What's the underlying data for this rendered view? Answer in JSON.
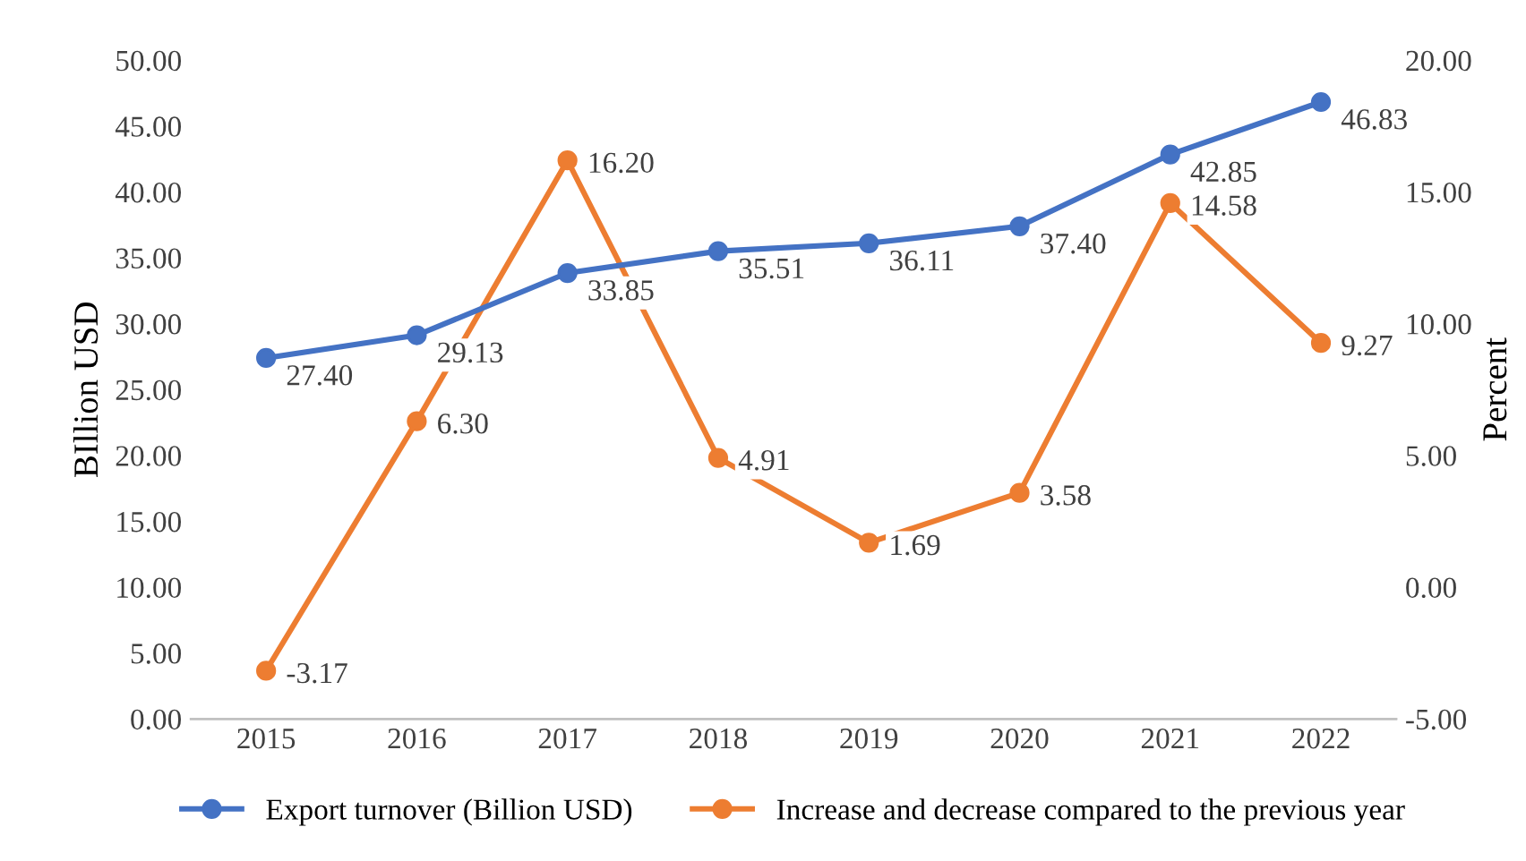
{
  "chart_data": {
    "type": "line",
    "categories": [
      "2015",
      "2016",
      "2017",
      "2018",
      "2019",
      "2020",
      "2021",
      "2022"
    ],
    "series": [
      {
        "name": "Export turnover (Billion USD)",
        "color": "#4472c4",
        "values": [
          27.4,
          29.13,
          33.85,
          35.51,
          36.11,
          37.4,
          42.85,
          46.83
        ],
        "value_labels": [
          "27.40",
          "29.13",
          "33.85",
          "35.51",
          "36.11",
          "37.40",
          "42.85",
          "46.83"
        ]
      },
      {
        "name": "Increase and decrease compared to the previous year",
        "color": "#ed7d31",
        "axis": "y2",
        "values": [
          -3.17,
          6.3,
          16.2,
          4.91,
          1.69,
          3.58,
          14.58,
          9.27
        ],
        "value_labels": [
          "-3.17",
          "6.30",
          "16.20",
          "4.91",
          "1.69",
          "3.58",
          "14.58",
          "9.27"
        ]
      }
    ],
    "ylabel": "BIllion USD",
    "y2label": "Percent",
    "ylim": [
      0,
      50
    ],
    "yticks": [
      {
        "value": 0,
        "label": "0.00"
      },
      {
        "value": 5,
        "label": "5.00"
      },
      {
        "value": 10,
        "label": "10.00"
      },
      {
        "value": 15,
        "label": "15.00"
      },
      {
        "value": 20,
        "label": "20.00"
      },
      {
        "value": 25,
        "label": "25.00"
      },
      {
        "value": 30,
        "label": "30.00"
      },
      {
        "value": 35,
        "label": "35.00"
      },
      {
        "value": 40,
        "label": "40.00"
      },
      {
        "value": 45,
        "label": "45.00"
      },
      {
        "value": 50,
        "label": "50.00"
      }
    ],
    "y2lim": [
      -5,
      20
    ],
    "y2ticks": [
      {
        "value": -5,
        "label": "-5.00"
      },
      {
        "value": 0,
        "label": "0.00"
      },
      {
        "value": 5,
        "label": "5.00"
      },
      {
        "value": 10,
        "label": "10.00"
      },
      {
        "value": 15,
        "label": "15.00"
      },
      {
        "value": 20,
        "label": "20.00"
      }
    ],
    "legend": "bottom",
    "marker": "circle",
    "line_style": "solid",
    "grid": false
  }
}
